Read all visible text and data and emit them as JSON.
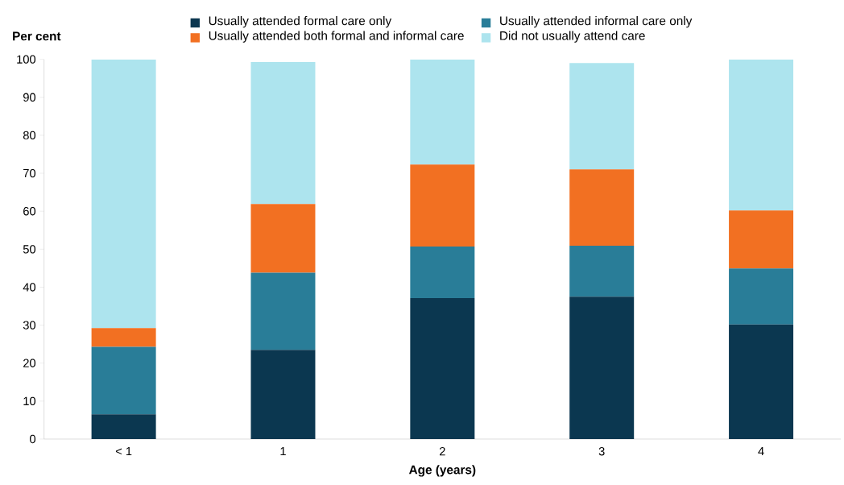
{
  "chart_data": {
    "type": "bar",
    "stacked": true,
    "ylabel": "Per cent",
    "xlabel": "Age (years)",
    "categories": [
      "< 1",
      "1",
      "2",
      "3",
      "4"
    ],
    "series": [
      {
        "name": "Usually attended formal care only",
        "color": "#0b3750",
        "values": [
          6.5,
          23.5,
          37.1,
          37.5,
          30.2
        ]
      },
      {
        "name": "Usually attended informal care only",
        "color": "#297d98",
        "values": [
          17.8,
          20.3,
          13.6,
          13.4,
          14.7
        ]
      },
      {
        "name": "Usually attended both formal and informal care",
        "color": "#f27022",
        "values": [
          4.9,
          18.1,
          21.6,
          20.1,
          15.3
        ]
      },
      {
        "name": "Did not usually attend care",
        "color": "#ade4ee",
        "values": [
          70.8,
          37.4,
          27.7,
          28.0,
          39.8
        ]
      }
    ],
    "ylim": [
      0,
      100
    ],
    "yticks": [
      0,
      10,
      20,
      30,
      40,
      50,
      60,
      70,
      80,
      90,
      100
    ],
    "legend": "top"
  }
}
